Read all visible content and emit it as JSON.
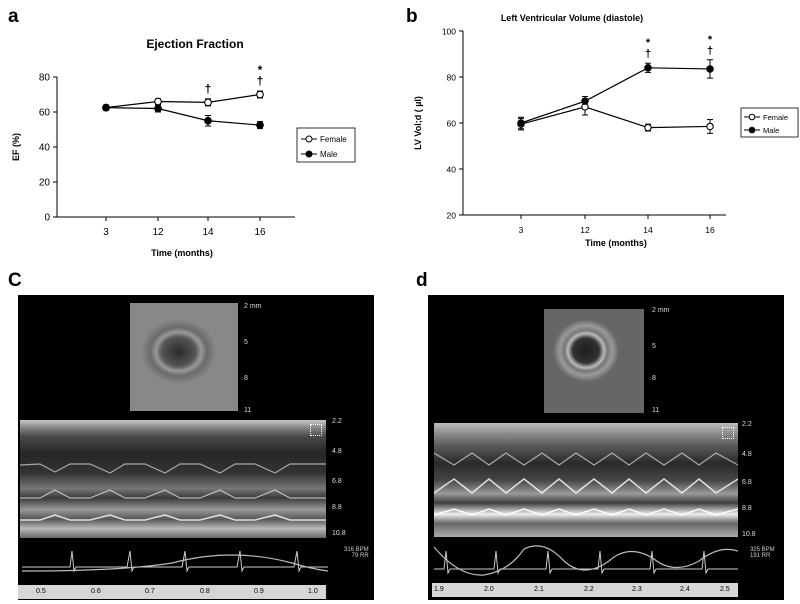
{
  "panels": {
    "a": "a",
    "b": "b",
    "c": "C",
    "d": "d"
  },
  "chart_data": [
    {
      "type": "line",
      "title": "Ejection Fraction",
      "xlabel": "Time (months)",
      "ylabel": "EF (%)",
      "categories": [
        "3",
        "12",
        "14",
        "16"
      ],
      "ylim": [
        0,
        80
      ],
      "yticks": [
        "0",
        "20",
        "40",
        "60",
        "80"
      ],
      "series": [
        {
          "name": "Female",
          "marker": "open-circle",
          "values": [
            62.5,
            66,
            65.5,
            70
          ],
          "errors": [
            1.5,
            1.5,
            2,
            2
          ]
        },
        {
          "name": "Male",
          "marker": "filled-circle",
          "values": [
            62.5,
            62,
            55,
            52.5
          ],
          "errors": [
            1.5,
            2,
            3,
            2
          ]
        }
      ],
      "annotations": [
        {
          "x": "14",
          "text": "†"
        },
        {
          "x": "16",
          "text": "*"
        },
        {
          "x": "16",
          "text": "†"
        }
      ],
      "legend": "right",
      "grid": false
    },
    {
      "type": "line",
      "title": "Left Ventricular Volume (diastole)",
      "xlabel": "Time (months)",
      "ylabel": "LV Vol;d ( µl)",
      "categories": [
        "3",
        "12",
        "14",
        "16"
      ],
      "ylim": [
        20,
        100
      ],
      "yticks": [
        "20",
        "40",
        "60",
        "80",
        "100"
      ],
      "series": [
        {
          "name": "Female",
          "marker": "open-circle",
          "values": [
            59.5,
            67,
            58,
            58.5
          ],
          "errors": [
            2.5,
            3.5,
            1.5,
            3
          ]
        },
        {
          "name": "Male",
          "marker": "filled-circle",
          "values": [
            60,
            69.5,
            84,
            83.5
          ],
          "errors": [
            2.5,
            2,
            2,
            4
          ]
        }
      ],
      "annotations": [
        {
          "x": "14",
          "text": "*"
        },
        {
          "x": "14",
          "text": "†"
        },
        {
          "x": "16",
          "text": "*"
        },
        {
          "x": "16",
          "text": "†"
        }
      ],
      "legend": "right",
      "grid": false
    }
  ],
  "echo": {
    "c": {
      "depth_top": [
        "2 mm",
        "5",
        "8",
        "11"
      ],
      "depth_mmode": [
        "2.2",
        "4.8",
        "6.8",
        "8.8",
        "10.8"
      ],
      "bpm": "316 BPM",
      "rr": "79 RR",
      "time_ticks": [
        "0.5",
        "0.6",
        "0.7",
        "0.8",
        "0.9",
        "1.0"
      ]
    },
    "d": {
      "depth_top": [
        "2 mm",
        "5",
        "8",
        "11"
      ],
      "depth_mmode": [
        "2.2",
        "4.8",
        "6.8",
        "8.8",
        "10.8"
      ],
      "bpm": "325 BPM",
      "rr": "191 RR",
      "time_ticks": [
        "1.9",
        "2.0",
        "2.1",
        "2.2",
        "2.3",
        "2.4",
        "2.5"
      ]
    }
  }
}
